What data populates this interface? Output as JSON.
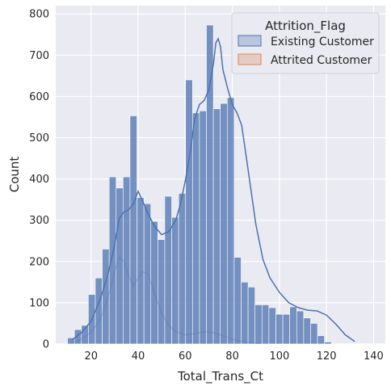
{
  "chart_data": {
    "type": "bar",
    "xlabel": "Total_Trans_Ct",
    "ylabel": "Count",
    "xlim": [
      5,
      145
    ],
    "ylim": [
      0,
      820
    ],
    "x_ticks": [
      20,
      40,
      60,
      80,
      100,
      120,
      140
    ],
    "y_ticks": [
      0,
      100,
      200,
      300,
      400,
      500,
      600,
      700,
      800
    ],
    "grid": true,
    "legend_position": "top-right",
    "legend_title": "Attrition_Flag",
    "bin_width": 2.95,
    "bin_start": 10,
    "series": [
      {
        "name": "Existing Customer",
        "color": "#4c72b0",
        "values": [
          15,
          35,
          45,
          120,
          160,
          230,
          405,
          378,
          405,
          553,
          355,
          340,
          297,
          253,
          358,
          307,
          365,
          640,
          560,
          565,
          773,
          570,
          583,
          597,
          210,
          150,
          138,
          95,
          95,
          88,
          72,
          72,
          90,
          80,
          63,
          50,
          20,
          5,
          0,
          0
        ]
      },
      {
        "name": "Attrited Customer",
        "color": "#dd8452",
        "values": []
      }
    ],
    "kde": {
      "existing": {
        "x": [
          12,
          16,
          20,
          24,
          27,
          30,
          32,
          34,
          36,
          38,
          40,
          42,
          44,
          47,
          50,
          53,
          56,
          58,
          60,
          62,
          64,
          66,
          68,
          70,
          72,
          73,
          74,
          75,
          76,
          78,
          80,
          82,
          84,
          86,
          88,
          90,
          93,
          96,
          100,
          104,
          108,
          112,
          116,
          120,
          124,
          128,
          132
        ],
        "y": [
          10,
          28,
          55,
          110,
          165,
          240,
          305,
          320,
          325,
          340,
          370,
          345,
          318,
          285,
          265,
          272,
          300,
          340,
          395,
          460,
          545,
          580,
          590,
          615,
          680,
          730,
          740,
          720,
          665,
          620,
          580,
          560,
          530,
          450,
          370,
          290,
          205,
          160,
          125,
          100,
          88,
          82,
          80,
          70,
          48,
          22,
          6
        ]
      },
      "attrited": {
        "x": [
          12,
          16,
          20,
          24,
          27,
          30,
          32,
          34,
          36,
          38,
          40,
          42,
          44,
          46,
          48,
          50,
          53,
          56,
          60,
          64,
          68,
          72,
          76,
          80,
          84,
          88,
          92
        ],
        "y": [
          3,
          12,
          28,
          60,
          110,
          175,
          210,
          200,
          165,
          140,
          160,
          175,
          170,
          140,
          105,
          75,
          45,
          30,
          22,
          25,
          30,
          28,
          20,
          12,
          6,
          3,
          1
        ]
      }
    }
  }
}
